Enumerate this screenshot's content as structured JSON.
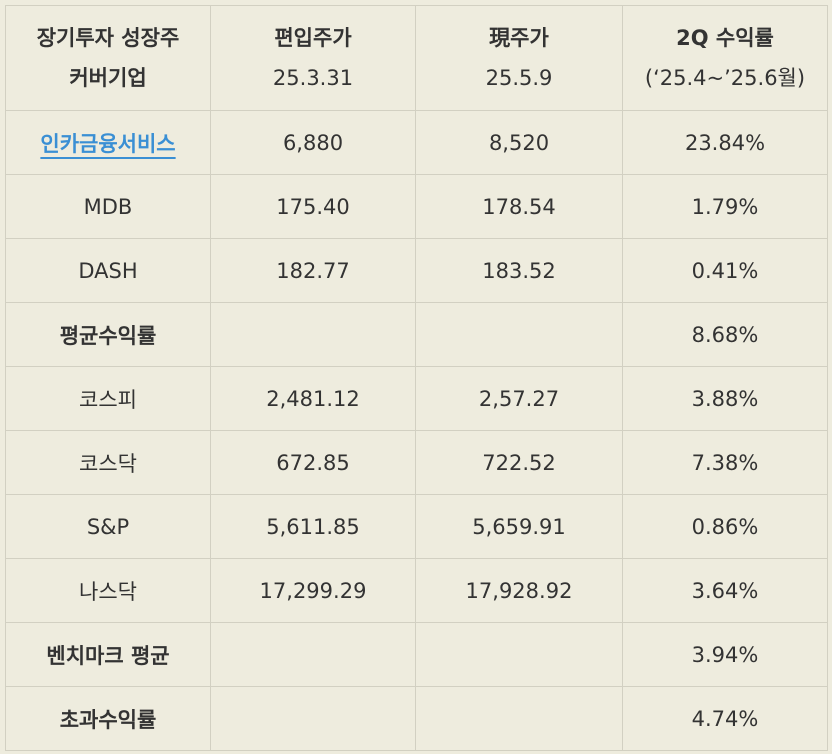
{
  "header": {
    "col1": [
      "장기투자 성장주",
      "커버기업"
    ],
    "col2": [
      "편입주가",
      "25.3.31"
    ],
    "col3": [
      "現주가",
      "25.5.9"
    ],
    "col4": [
      "2Q 수익률",
      "(‘25.4~’25.6월)"
    ]
  },
  "rows": [
    {
      "name": "인카금융서비스",
      "base": "6,880",
      "current": "8,520",
      "return": "23.84%"
    },
    {
      "name": "MDB",
      "base": "175.40",
      "current": "178.54",
      "return": "1.79%"
    },
    {
      "name": "DASH",
      "base": "182.77",
      "current": "183.52",
      "return": "0.41%"
    },
    {
      "name": "평균수익률",
      "base": "",
      "current": "",
      "return": "8.68%"
    },
    {
      "name": "코스피",
      "base": "2,481.12",
      "current": "2,57.27",
      "return": "3.88%"
    },
    {
      "name": "코스닥",
      "base": "672.85",
      "current": "722.52",
      "return": "7.38%"
    },
    {
      "name": "S&P",
      "base": "5,611.85",
      "current": "5,659.91",
      "return": "0.86%"
    },
    {
      "name": "나스닥",
      "base": "17,299.29",
      "current": "17,928.92",
      "return": "3.64%"
    },
    {
      "name": "벤치마크 평균",
      "base": "",
      "current": "",
      "return": "3.94%"
    },
    {
      "name": "초과수익률",
      "base": "",
      "current": "",
      "return": "4.74%"
    }
  ],
  "colors": {
    "background": "#eeecde",
    "link": "#3a8fd4",
    "border": "#d2d0c2"
  }
}
